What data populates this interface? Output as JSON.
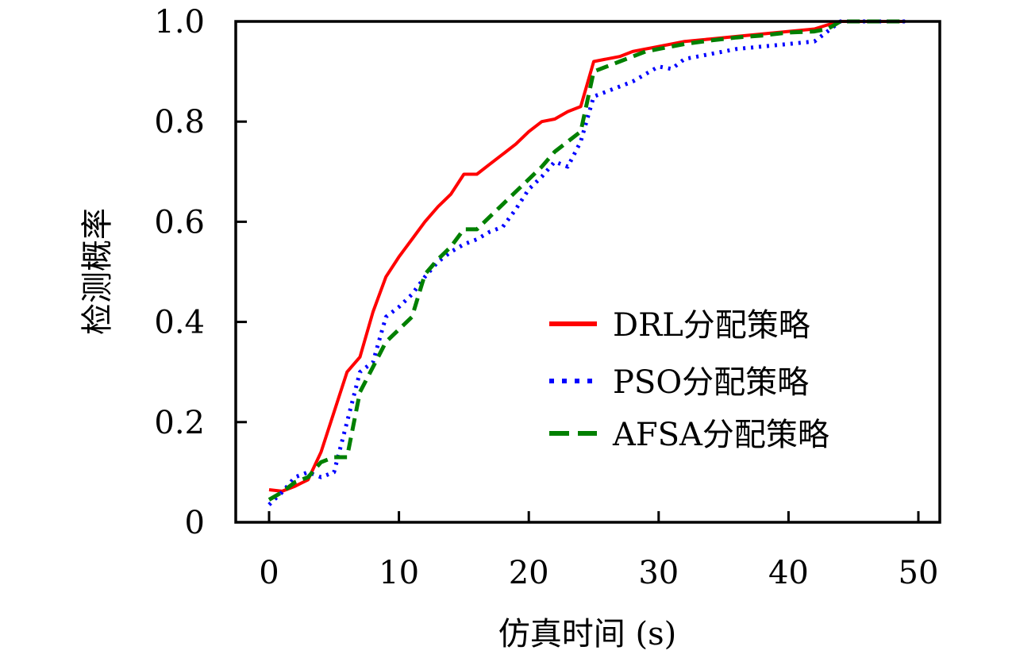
{
  "chart_data": {
    "type": "line",
    "title": "",
    "xlabel": "仿真时间 (s)",
    "ylabel": "检测概率",
    "xlim": [
      -2.5,
      51.5
    ],
    "ylim": [
      0,
      1.0
    ],
    "xticks": [
      0,
      10,
      20,
      30,
      40,
      50
    ],
    "xtick_labels": [
      "0",
      "10",
      "20",
      "30",
      "40",
      "50"
    ],
    "yticks": [
      0,
      0.2,
      0.4,
      0.6,
      0.8,
      1.0
    ],
    "ytick_labels": [
      "0",
      "0.2",
      "0.4",
      "0.6",
      "0.8",
      "1.0"
    ],
    "grid": false,
    "legend_position": "center-right",
    "series": [
      {
        "name": "DRL分配策略",
        "color": "#ff0000",
        "style": "solid",
        "x": [
          0,
          1,
          2,
          3,
          4,
          5,
          6,
          7,
          8,
          9,
          10,
          11,
          12,
          13,
          14,
          15,
          16,
          17,
          18,
          19,
          20,
          21,
          22,
          23,
          24,
          25,
          26,
          27,
          28,
          29,
          30,
          32,
          34,
          36,
          38,
          40,
          42,
          43,
          44,
          45,
          49
        ],
        "y": [
          0.065,
          0.062,
          0.072,
          0.085,
          0.14,
          0.22,
          0.3,
          0.33,
          0.42,
          0.49,
          0.53,
          0.565,
          0.6,
          0.63,
          0.655,
          0.695,
          0.695,
          0.715,
          0.735,
          0.755,
          0.78,
          0.8,
          0.805,
          0.82,
          0.83,
          0.92,
          0.925,
          0.93,
          0.94,
          0.945,
          0.95,
          0.96,
          0.965,
          0.97,
          0.975,
          0.98,
          0.985,
          0.993,
          1.0,
          1.0,
          1.0
        ]
      },
      {
        "name": "PSO分配策略",
        "color": "#0000ff",
        "style": "dotted",
        "x": [
          0,
          1,
          2,
          3,
          4,
          5,
          6,
          7,
          8,
          9,
          10,
          11,
          12,
          13,
          14,
          15,
          16,
          17,
          18,
          19,
          20,
          21,
          22,
          23,
          24,
          25,
          26,
          27,
          28,
          29,
          30,
          31,
          32,
          33,
          34,
          35,
          36,
          38,
          40,
          42,
          43,
          44,
          45,
          49
        ],
        "y": [
          0.035,
          0.06,
          0.09,
          0.1,
          0.09,
          0.1,
          0.2,
          0.3,
          0.32,
          0.41,
          0.43,
          0.455,
          0.49,
          0.52,
          0.54,
          0.555,
          0.565,
          0.58,
          0.59,
          0.625,
          0.665,
          0.69,
          0.72,
          0.71,
          0.76,
          0.85,
          0.86,
          0.87,
          0.88,
          0.895,
          0.91,
          0.905,
          0.925,
          0.93,
          0.935,
          0.94,
          0.945,
          0.95,
          0.955,
          0.96,
          0.98,
          1.0,
          1.0,
          1.0
        ]
      },
      {
        "name": "AFSA分配策略",
        "color": "#008000",
        "style": "dashed",
        "x": [
          0,
          1,
          2,
          3,
          4,
          5,
          6,
          7,
          8,
          9,
          10,
          11,
          12,
          13,
          14,
          15,
          16,
          17,
          18,
          19,
          20,
          21,
          22,
          23,
          24,
          25,
          26,
          27,
          28,
          29,
          30,
          32,
          34,
          36,
          38,
          40,
          42,
          43,
          44,
          45,
          49
        ],
        "y": [
          0.045,
          0.06,
          0.08,
          0.09,
          0.12,
          0.13,
          0.13,
          0.26,
          0.31,
          0.36,
          0.385,
          0.41,
          0.495,
          0.525,
          0.55,
          0.585,
          0.585,
          0.61,
          0.635,
          0.66,
          0.685,
          0.71,
          0.74,
          0.76,
          0.78,
          0.9,
          0.91,
          0.92,
          0.93,
          0.94,
          0.945,
          0.955,
          0.962,
          0.968,
          0.972,
          0.978,
          0.98,
          0.985,
          1.0,
          1.0,
          1.0
        ]
      }
    ]
  }
}
